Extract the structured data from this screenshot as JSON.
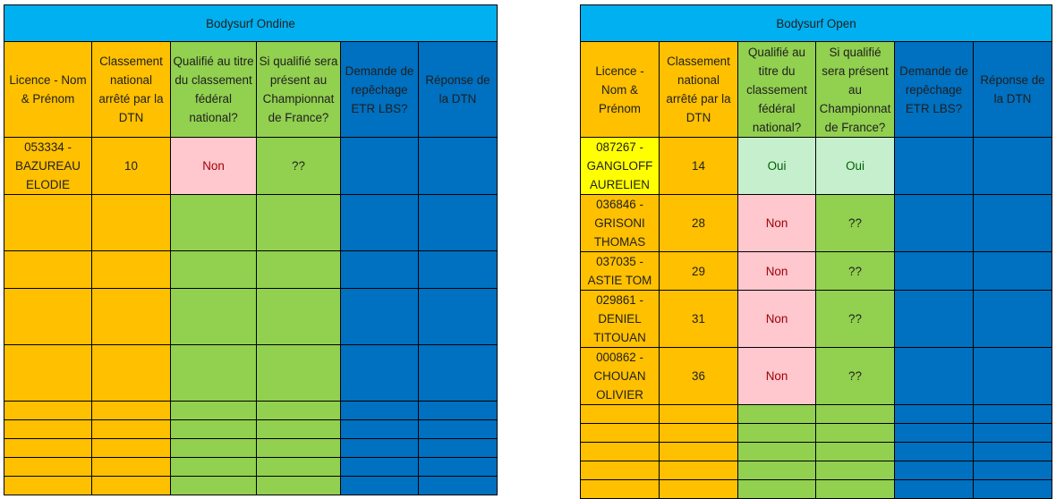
{
  "ondine": {
    "title": "Bodysurf Ondine",
    "headers": [
      "Licence - Nom & Prénom",
      "Classement national arrêté par la DTN",
      "Qualifié au titre du classement fédéral national?",
      "Si qualifié sera présent au Championnat de France?",
      "Demande de repêchage ETR LBS?",
      "Réponse de la DTN"
    ],
    "rows": [
      {
        "licence": "053334 - BAZUREAU ELODIE",
        "classement": "10",
        "qualifie": "Non",
        "present": "??",
        "demande": "",
        "reponse": ""
      },
      {
        "licence": "",
        "classement": "",
        "qualifie": "",
        "present": "",
        "demande": "",
        "reponse": ""
      },
      {
        "licence": "",
        "classement": "",
        "qualifie": "",
        "present": "",
        "demande": "",
        "reponse": ""
      },
      {
        "licence": "",
        "classement": "",
        "qualifie": "",
        "present": "",
        "demande": "",
        "reponse": ""
      },
      {
        "licence": "",
        "classement": "",
        "qualifie": "",
        "present": "",
        "demande": "",
        "reponse": ""
      },
      {
        "licence": "",
        "classement": "",
        "qualifie": "",
        "present": "",
        "demande": "",
        "reponse": ""
      },
      {
        "licence": "",
        "classement": "",
        "qualifie": "",
        "present": "",
        "demande": "",
        "reponse": ""
      },
      {
        "licence": "",
        "classement": "",
        "qualifie": "",
        "present": "",
        "demande": "",
        "reponse": ""
      },
      {
        "licence": "",
        "classement": "",
        "qualifie": "",
        "present": "",
        "demande": "",
        "reponse": ""
      },
      {
        "licence": "",
        "classement": "",
        "qualifie": "",
        "present": "",
        "demande": "",
        "reponse": ""
      }
    ]
  },
  "open": {
    "title": "Bodysurf Open",
    "headers": [
      "Licence - Nom & Prénom",
      "Classement national arrêté par la DTN",
      "Qualifié au titre du classement fédéral national?",
      "Si qualifié sera présent au Championnat de France?",
      "Demande de repêchage ETR LBS?",
      "Réponse de la DTN"
    ],
    "rows": [
      {
        "licence": "087267 - GANGLOFF AURELIEN",
        "classement": "14",
        "qualifie": "Oui",
        "present": "Oui",
        "demande": "",
        "reponse": ""
      },
      {
        "licence": "036846 - GRISONI THOMAS",
        "classement": "28",
        "qualifie": "Non",
        "present": "??",
        "demande": "",
        "reponse": ""
      },
      {
        "licence": "037035 - ASTIE TOM",
        "classement": "29",
        "qualifie": "Non",
        "present": "??",
        "demande": "",
        "reponse": ""
      },
      {
        "licence": "029861 - DENIEL TITOUAN",
        "classement": "31",
        "qualifie": "Non",
        "present": "??",
        "demande": "",
        "reponse": ""
      },
      {
        "licence": "000862 - CHOUAN OLIVIER",
        "classement": "36",
        "qualifie": "Non",
        "present": "??",
        "demande": "",
        "reponse": ""
      },
      {
        "licence": "",
        "classement": "",
        "qualifie": "",
        "present": "",
        "demande": "",
        "reponse": ""
      },
      {
        "licence": "",
        "classement": "",
        "qualifie": "",
        "present": "",
        "demande": "",
        "reponse": ""
      },
      {
        "licence": "",
        "classement": "",
        "qualifie": "",
        "present": "",
        "demande": "",
        "reponse": ""
      },
      {
        "licence": "",
        "classement": "",
        "qualifie": "",
        "present": "",
        "demande": "",
        "reponse": ""
      },
      {
        "licence": "",
        "classement": "",
        "qualifie": "",
        "present": "",
        "demande": "",
        "reponse": ""
      }
    ]
  },
  "colors": {
    "title": "#00b0f0",
    "licence": "#ffc000",
    "classement": "#ffc000",
    "qualifie": "#92d050",
    "present": "#92d050",
    "demande": "#0070c0",
    "reponse": "#0070c0",
    "highlight_name": "#ffff00",
    "non_fill": "#ffc7ce",
    "oui_fill": "#c6efce"
  }
}
